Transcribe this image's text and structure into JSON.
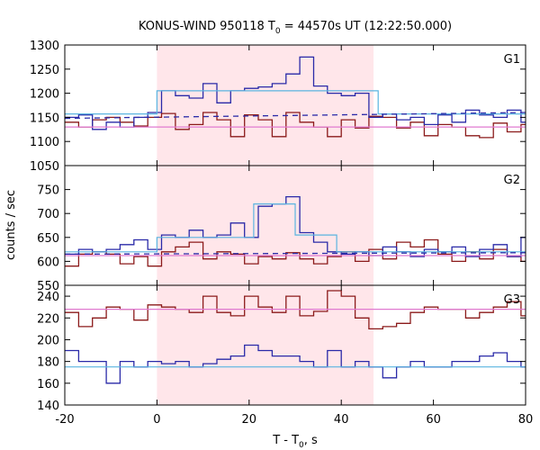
{
  "chart_data": {
    "type": "line",
    "title_parts": {
      "prefix": "KONUS-WIND 950118 T",
      "sub": "0",
      "suffix": " = 44570s UT (12:22:50.000)"
    },
    "xlabel_parts": {
      "prefix": "T - T",
      "sub": "0",
      "suffix": ", s"
    },
    "ylabel": "counts / sec",
    "xlim": [
      -20,
      80
    ],
    "xticks": [
      -20,
      0,
      20,
      40,
      60,
      80
    ],
    "highlight_interval": [
      0,
      47
    ],
    "colors": {
      "dark_red": "#8b1a1a",
      "blue": "#2a2aa8",
      "light_blue": "#5ab4e0",
      "pink": "#e07ad0",
      "shade": "#ffe6ea"
    },
    "panels": [
      {
        "label": "G1",
        "ylim": [
          1050,
          1300
        ],
        "yticks": [
          1050,
          1100,
          1150,
          1200,
          1250,
          1300
        ],
        "series": [
          {
            "kind": "step",
            "color": "dark_red",
            "x": [
              -20,
              -17,
              -14,
              -11,
              -8,
              -5,
              -2,
              1,
              4,
              7,
              10,
              13,
              16,
              19,
              22,
              25,
              28,
              31,
              34,
              37,
              40,
              43,
              46,
              49,
              52,
              55,
              58,
              61,
              64,
              67,
              70,
              73,
              76,
              79,
              80
            ],
            "y": [
              1140,
              1130,
              1145,
              1150,
              1140,
              1132,
              1150,
              1158,
              1125,
              1135,
              1160,
              1145,
              1110,
              1155,
              1145,
              1110,
              1160,
              1140,
              1130,
              1110,
              1145,
              1128,
              1152,
              1150,
              1128,
              1140,
              1112,
              1135,
              1130,
              1112,
              1108,
              1138,
              1120,
              1135,
              1135
            ]
          },
          {
            "kind": "step",
            "color": "blue",
            "x": [
              -20,
              -17,
              -14,
              -11,
              -8,
              -5,
              -2,
              1,
              4,
              7,
              10,
              13,
              16,
              19,
              22,
              25,
              28,
              31,
              34,
              37,
              40,
              43,
              46,
              49,
              52,
              55,
              58,
              61,
              64,
              67,
              70,
              73,
              76,
              79,
              80
            ],
            "y": [
              1150,
              1155,
              1125,
              1140,
              1130,
              1150,
              1160,
              1205,
              1195,
              1190,
              1220,
              1180,
              1205,
              1210,
              1213,
              1220,
              1240,
              1275,
              1215,
              1200,
              1195,
              1200,
              1150,
              1157,
              1145,
              1150,
              1135,
              1155,
              1140,
              1165,
              1155,
              1150,
              1165,
              1140,
              1140
            ]
          },
          {
            "kind": "step",
            "color": "light_blue",
            "x": [
              -20,
              0,
              0,
              48,
              48,
              80
            ],
            "y": [
              1157,
              1157,
              1205,
              1205,
              1157,
              1157
            ]
          },
          {
            "kind": "dashed",
            "color": "blue",
            "x": [
              -20,
              80
            ],
            "y": [
              1148,
              1160
            ]
          },
          {
            "kind": "flat",
            "color": "pink",
            "x": [
              -20,
              80
            ],
            "y": [
              1130,
              1130
            ]
          }
        ]
      },
      {
        "label": "G2",
        "ylim": [
          550,
          800
        ],
        "yticks": [
          550,
          600,
          650,
          700,
          750
        ],
        "series": [
          {
            "kind": "step",
            "color": "dark_red",
            "x": [
              -20,
              -17,
              -14,
              -11,
              -8,
              -5,
              -2,
              1,
              4,
              7,
              10,
              13,
              16,
              19,
              22,
              25,
              28,
              31,
              34,
              37,
              40,
              43,
              46,
              49,
              52,
              55,
              58,
              61,
              64,
              67,
              70,
              73,
              76,
              79,
              80
            ],
            "y": [
              590,
              615,
              620,
              615,
              595,
              610,
              590,
              620,
              630,
              640,
              605,
              620,
              615,
              595,
              610,
              605,
              618,
              605,
              595,
              610,
              620,
              600,
              625,
              605,
              640,
              630,
              645,
              615,
              600,
              620,
              605,
              625,
              610,
              600,
              600
            ]
          },
          {
            "kind": "step",
            "color": "blue",
            "x": [
              -20,
              -17,
              -14,
              -11,
              -8,
              -5,
              -2,
              1,
              4,
              7,
              10,
              13,
              16,
              19,
              22,
              25,
              28,
              31,
              34,
              37,
              40,
              43,
              46,
              49,
              52,
              55,
              58,
              61,
              64,
              67,
              70,
              73,
              76,
              79,
              80
            ],
            "y": [
              615,
              625,
              620,
              625,
              635,
              645,
              625,
              655,
              650,
              665,
              650,
              655,
              680,
              650,
              715,
              720,
              735,
              660,
              640,
              620,
              615,
              620,
              612,
              630,
              620,
              610,
              625,
              620,
              630,
              610,
              625,
              635,
              610,
              650,
              650
            ]
          },
          {
            "kind": "step",
            "color": "light_blue",
            "x": [
              -20,
              0,
              0,
              21,
              21,
              30,
              30,
              39,
              39,
              80
            ],
            "y": [
              620,
              620,
              650,
              650,
              720,
              720,
              655,
              655,
              620,
              620
            ]
          },
          {
            "kind": "dashed",
            "color": "blue",
            "x": [
              -20,
              80
            ],
            "y": [
              615,
              618
            ]
          },
          {
            "kind": "flat",
            "color": "pink",
            "x": [
              -20,
              80
            ],
            "y": [
              612,
              612
            ]
          }
        ]
      },
      {
        "label": "G3",
        "ylim": [
          140,
          250
        ],
        "yticks": [
          140,
          160,
          180,
          200,
          220,
          240
        ],
        "series": [
          {
            "kind": "step",
            "color": "dark_red",
            "x": [
              -20,
              -17,
              -14,
              -11,
              -8,
              -5,
              -2,
              1,
              4,
              7,
              10,
              13,
              16,
              19,
              22,
              25,
              28,
              31,
              34,
              37,
              40,
              43,
              46,
              49,
              52,
              55,
              58,
              61,
              64,
              67,
              70,
              73,
              76,
              79,
              80
            ],
            "y": [
              225,
              212,
              220,
              230,
              228,
              218,
              232,
              230,
              228,
              225,
              240,
              225,
              222,
              240,
              230,
              225,
              240,
              222,
              226,
              245,
              240,
              220,
              210,
              212,
              215,
              225,
              230,
              228,
              228,
              220,
              225,
              230,
              235,
              222,
              222
            ]
          },
          {
            "kind": "step",
            "color": "blue",
            "x": [
              -20,
              -17,
              -14,
              -11,
              -8,
              -5,
              -2,
              1,
              4,
              7,
              10,
              13,
              16,
              19,
              22,
              25,
              28,
              31,
              34,
              37,
              40,
              43,
              46,
              49,
              52,
              55,
              58,
              61,
              64,
              67,
              70,
              73,
              76,
              79,
              80
            ],
            "y": [
              190,
              180,
              180,
              160,
              180,
              175,
              180,
              178,
              180,
              175,
              178,
              182,
              185,
              195,
              190,
              185,
              185,
              180,
              175,
              190,
              175,
              180,
              175,
              165,
              175,
              180,
              175,
              175,
              180,
              180,
              185,
              188,
              180,
              175,
              175
            ]
          },
          {
            "kind": "flat",
            "color": "light_blue",
            "x": [
              -20,
              80
            ],
            "y": [
              175,
              175
            ]
          },
          {
            "kind": "flat",
            "color": "pink",
            "x": [
              -20,
              80
            ],
            "y": [
              228,
              228
            ]
          }
        ]
      }
    ]
  }
}
